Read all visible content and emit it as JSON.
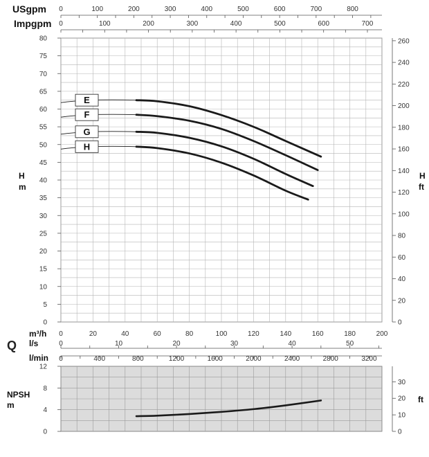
{
  "colors": {
    "grid": "#b5b5b5",
    "axis": "#555555",
    "curve": "#1a1a1a",
    "npsh_bg": "#dcdcdc",
    "label_box": "#ffffff"
  },
  "labels": {
    "usgpm": "USgpm",
    "impgpm": "Impgpm",
    "h_left_1": "H",
    "h_left_2": "m",
    "h_right_1": "H",
    "h_right_2": "ft",
    "m3h": "m³/h",
    "ls": "l/s",
    "lmin": "l/min",
    "q": "Q",
    "npsh_1": "NPSH",
    "npsh_2": "m",
    "npsh_ft": "ft"
  },
  "chart_data": [
    {
      "type": "line",
      "name": "head-curves",
      "x_axis_unit": "m³/h",
      "xlim": [
        0,
        200
      ],
      "x_ticks": [
        0,
        20,
        40,
        60,
        80,
        100,
        120,
        140,
        160,
        180,
        200
      ],
      "ylim": [
        0,
        80
      ],
      "y_ticks": [
        0,
        5,
        10,
        15,
        20,
        25,
        30,
        35,
        40,
        45,
        50,
        55,
        60,
        65,
        70,
        75,
        80
      ],
      "y_right_unit": "ft",
      "y_right_ticks": [
        0,
        20,
        40,
        60,
        80,
        100,
        120,
        140,
        160,
        180,
        200,
        220,
        240,
        260
      ],
      "top_axes": [
        {
          "unit": "USgpm",
          "ticks": [
            0,
            100,
            200,
            300,
            400,
            500,
            600,
            700,
            800
          ]
        },
        {
          "unit": "Impgpm",
          "ticks": [
            0,
            100,
            200,
            300,
            400,
            500,
            600,
            700
          ]
        }
      ],
      "bottom_axes": [
        {
          "unit": "l/s",
          "ticks": [
            0,
            10,
            20,
            30,
            40,
            50
          ]
        },
        {
          "unit": "l/min",
          "ticks": [
            0,
            400,
            800,
            1200,
            1600,
            2000,
            2400,
            2800,
            3200
          ]
        }
      ],
      "grid": true,
      "series": [
        {
          "name": "E",
          "x": [
            47,
            60,
            80,
            100,
            120,
            140,
            162
          ],
          "y": [
            62.5,
            62.2,
            60.8,
            58.3,
            55,
            51,
            46.6
          ]
        },
        {
          "name": "F",
          "x": [
            47,
            60,
            80,
            100,
            120,
            140,
            160
          ],
          "y": [
            58.4,
            58,
            56.7,
            54.4,
            51,
            47,
            42.8
          ]
        },
        {
          "name": "G",
          "x": [
            47,
            60,
            80,
            100,
            120,
            140,
            157
          ],
          "y": [
            53.6,
            53.3,
            51.9,
            49.5,
            46,
            41.7,
            38.3
          ]
        },
        {
          "name": "H",
          "x": [
            47,
            60,
            80,
            100,
            120,
            140,
            154
          ],
          "y": [
            49.4,
            49,
            47.5,
            44.9,
            41.3,
            37,
            34.5
          ]
        }
      ]
    },
    {
      "type": "line",
      "name": "npsh-curve",
      "x_axis_unit": "m³/h",
      "xlim": [
        0,
        200
      ],
      "ylim": [
        0,
        12
      ],
      "y_ticks": [
        0,
        4,
        8,
        12
      ],
      "y_right_unit": "ft",
      "y_right_ticks": [
        0,
        10,
        20,
        30
      ],
      "grid": true,
      "series": [
        {
          "name": "NPSH",
          "x": [
            47,
            60,
            80,
            100,
            120,
            140,
            162
          ],
          "y": [
            2.8,
            2.9,
            3.2,
            3.6,
            4.1,
            4.8,
            5.7
          ]
        }
      ]
    }
  ]
}
